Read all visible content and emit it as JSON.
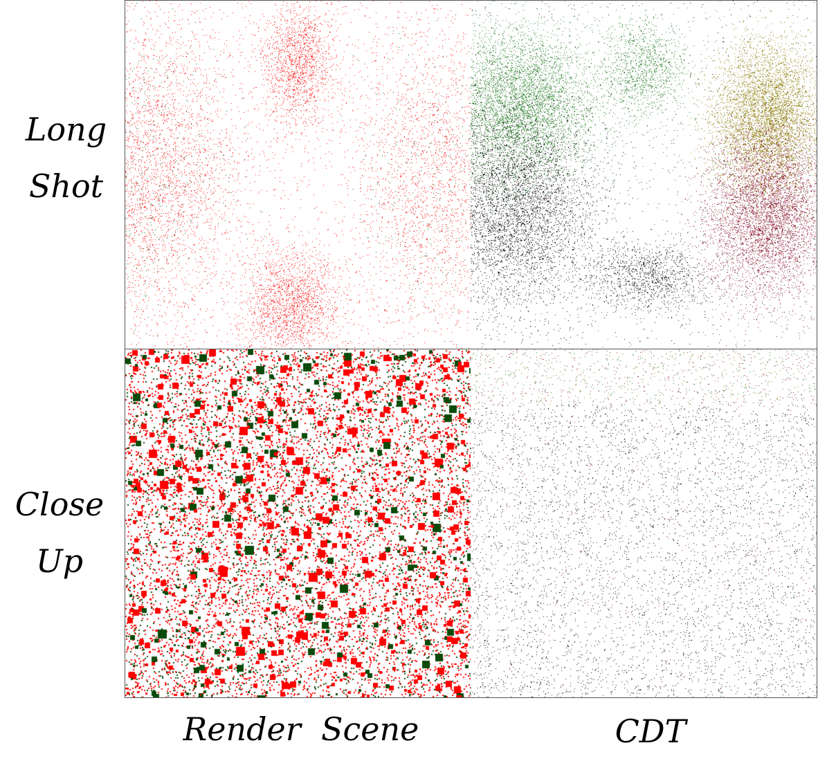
{
  "rows": [
    {
      "label_line1": "Long",
      "label_line2": "Shot"
    },
    {
      "label_line1": "Close",
      "label_line2": "Up"
    }
  ],
  "columns": [
    {
      "label": "Render  Scene"
    },
    {
      "label": "CDT"
    }
  ],
  "colors": {
    "red": "#ff0000",
    "dark_green": "#0a4a0a",
    "green": "#1e7a1e",
    "black": "#000000",
    "olive": "#8a7a00",
    "maroon": "#8a1030",
    "border": "#555555"
  }
}
